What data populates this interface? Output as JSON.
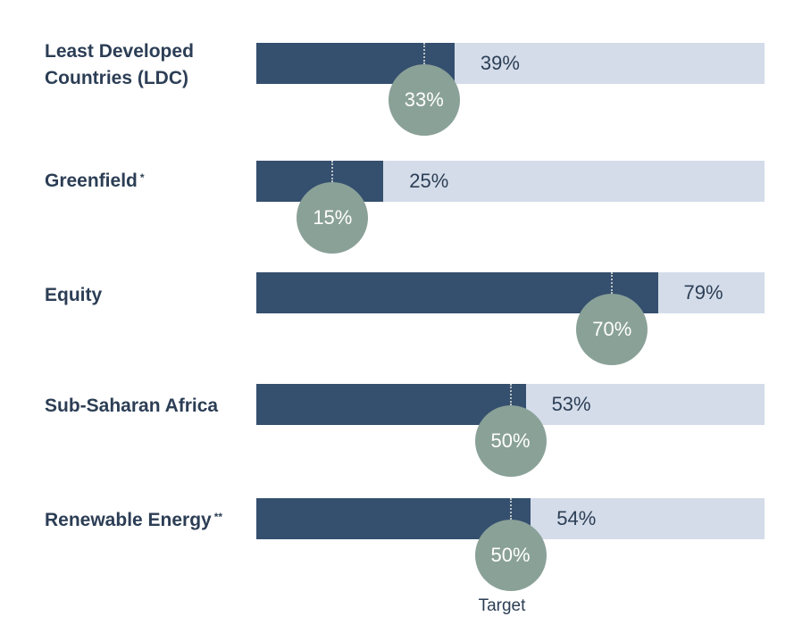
{
  "colors": {
    "bar_fill": "#354f6e",
    "bar_track": "#d4dce9",
    "target_circle": "#8aa198",
    "text": "#2c3e55"
  },
  "target_caption": "Target",
  "chart_data": {
    "type": "bar",
    "orientation": "horizontal",
    "xlim": [
      0,
      100
    ],
    "categories": [
      "Least Developed Countries (LDC)",
      "Greenfield",
      "Equity",
      "Sub-Saharan Africa",
      "Renewable Energy"
    ],
    "category_notes": [
      "",
      "*",
      "",
      "",
      "**"
    ],
    "series": [
      {
        "name": "",
        "values": [
          39,
          25,
          79,
          53,
          54
        ],
        "labels": [
          "39%",
          "25%",
          "79%",
          "53%",
          "54%"
        ]
      }
    ],
    "targets": [
      33,
      15,
      70,
      50,
      50
    ],
    "target_labels": [
      "33%",
      "15%",
      "70%",
      "50%",
      "50%"
    ]
  }
}
